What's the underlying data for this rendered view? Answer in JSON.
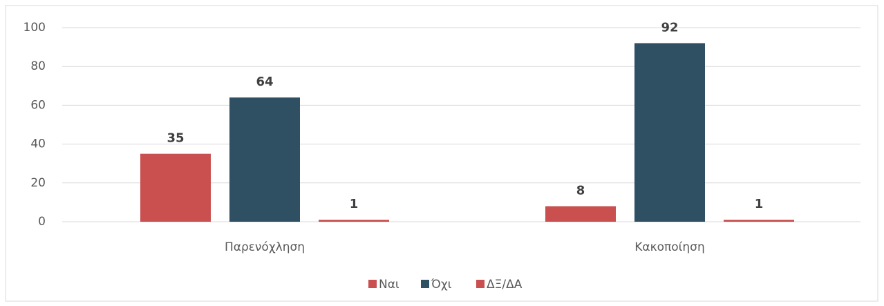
{
  "chart_data": {
    "type": "bar",
    "categories": [
      "Παρενόχληση",
      "Κακοποίηση"
    ],
    "series": [
      {
        "name": "Ναι",
        "color": "#c9504f",
        "values": [
          35,
          8
        ]
      },
      {
        "name": "Όχι",
        "color": "#2f4f62",
        "values": [
          64,
          92
        ]
      },
      {
        "name": "ΔΞ/ΔΑ",
        "color": "#c9504f",
        "values": [
          1,
          1
        ]
      }
    ],
    "ylim": [
      0,
      100
    ],
    "yticks": [
      0,
      20,
      40,
      60,
      80,
      100
    ],
    "grid": true,
    "legend": "bottom"
  }
}
